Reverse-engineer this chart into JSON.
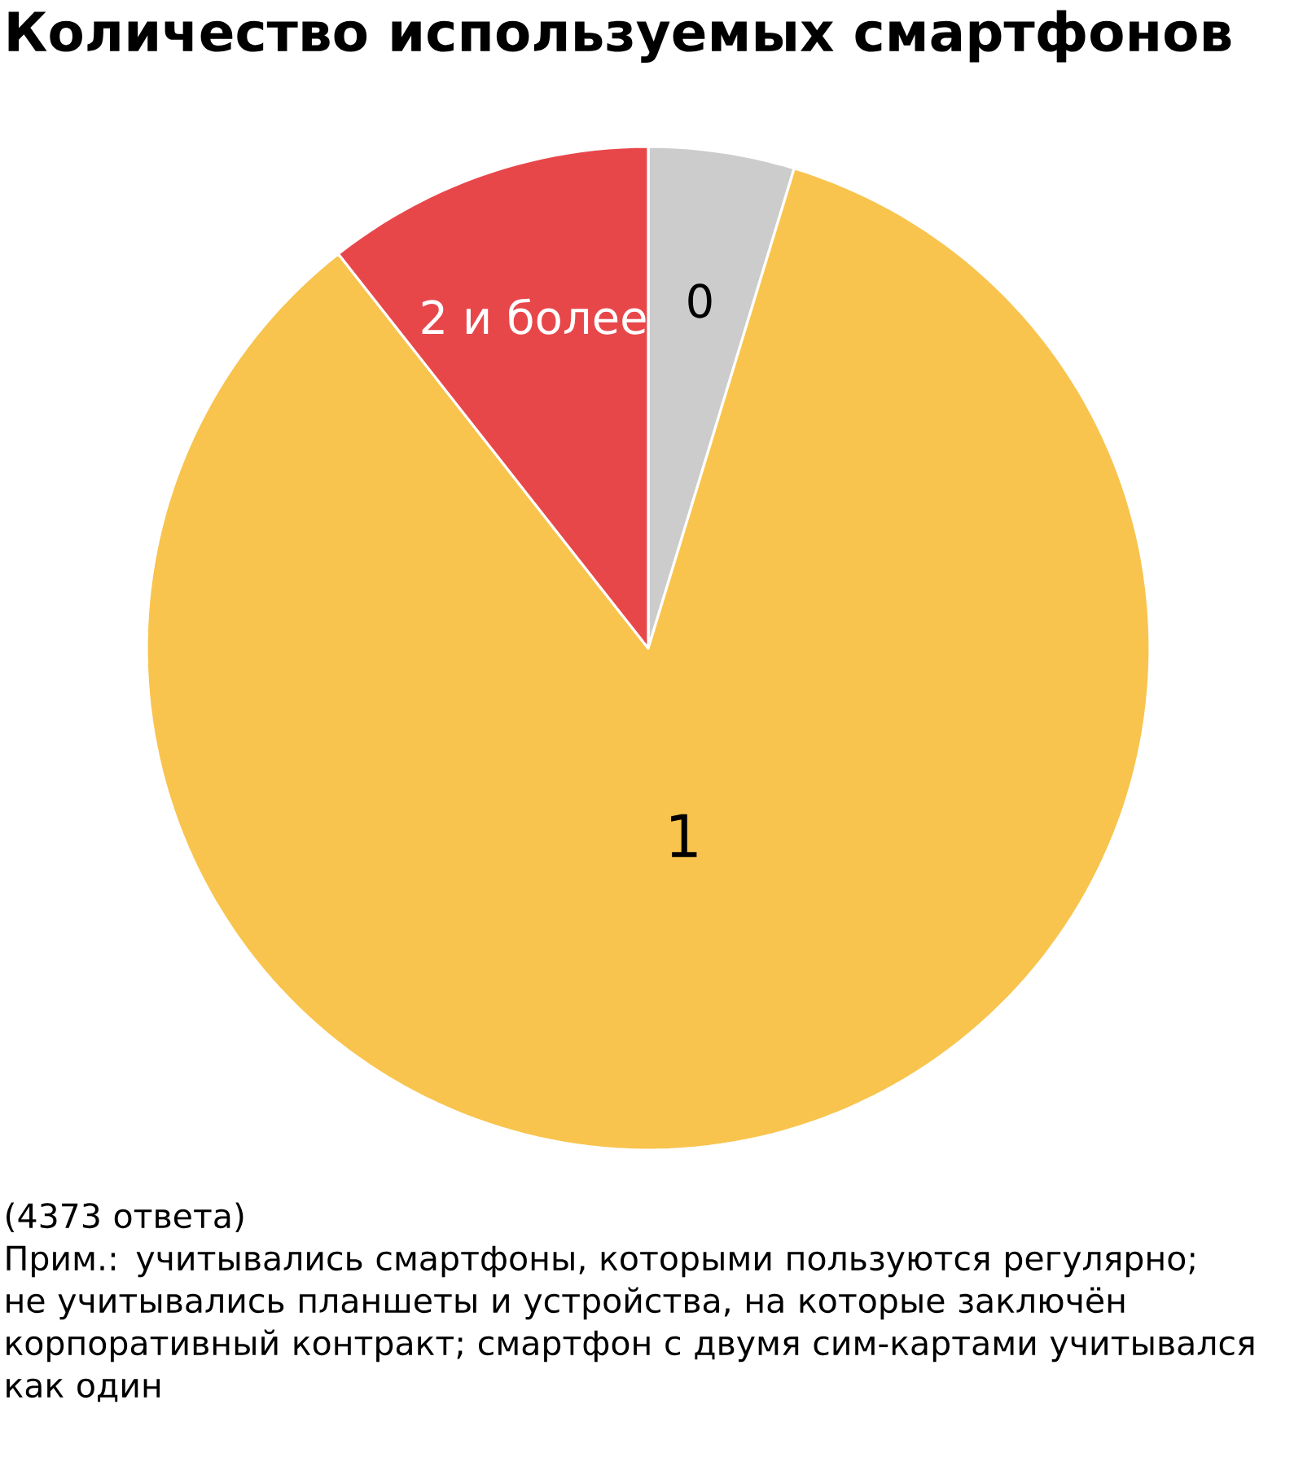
{
  "chart_data": {
    "type": "pie",
    "title": "Количество используемых смартфонов",
    "categories": [
      "0",
      "1",
      "2 и более"
    ],
    "values": [
      4.7,
      84.7,
      10.6
    ],
    "colors": [
      "#cccccc",
      "#f8c44e",
      "#e8474a"
    ],
    "annotations": [
      "(4373 ответа)",
      "Прим.: учитывались смартфоны, которыми пользуются регулярно; не учитывались планшеты и устройства, на которые заключён корпоративный контракт; смартфон с двумя сим-картами учитывался как один"
    ]
  }
}
